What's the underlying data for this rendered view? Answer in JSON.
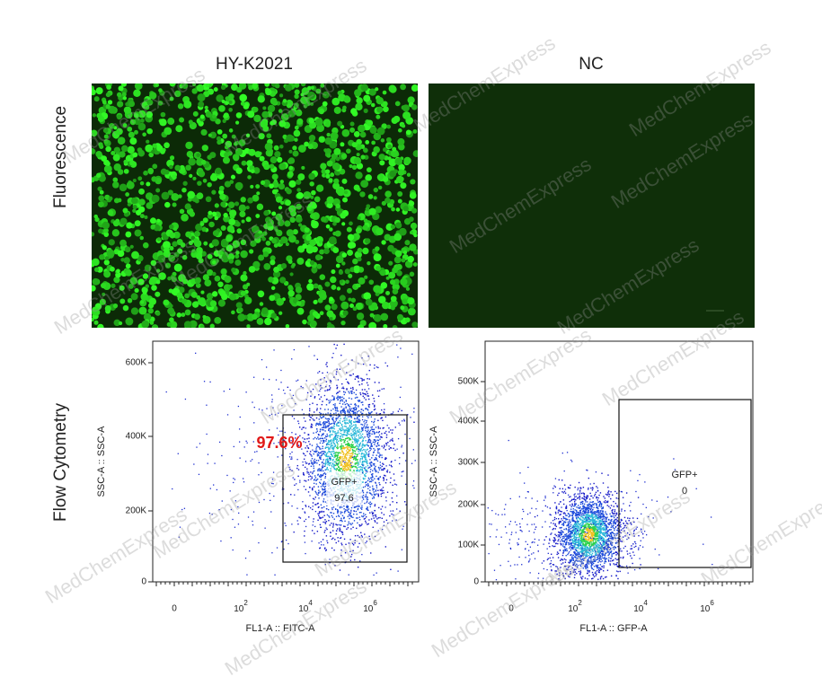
{
  "columns": [
    "HY-K2021",
    "NC"
  ],
  "rows": [
    "Fluorescence",
    "Flow Cytometry"
  ],
  "watermark": "MedChemExpress",
  "panels": [
    {
      "y_axis_title": "SSC-A :: SSC-A",
      "x_axis_title": "FL1-A :: FITC-A",
      "y_ticks": [
        "600K",
        "400K",
        "200K",
        "0"
      ],
      "x_ticks": [
        "0",
        {
          "base": "10",
          "exp": "2"
        },
        {
          "base": "10",
          "exp": "4"
        },
        {
          "base": "10",
          "exp": "6"
        }
      ],
      "gate_name": "GFP+",
      "gate_value": "97.6",
      "highlight": "97.6%"
    },
    {
      "y_axis_title": "SSC-A :: SSC-A",
      "x_axis_title": "FL1-A :: GFP-A",
      "y_ticks": [
        "500K",
        "400K",
        "300K",
        "200K",
        "100K",
        "0"
      ],
      "x_ticks": [
        "0",
        {
          "base": "10",
          "exp": "2"
        },
        {
          "base": "10",
          "exp": "4"
        },
        {
          "base": "10",
          "exp": "6"
        }
      ],
      "gate_name": "GFP+",
      "gate_value": "0"
    }
  ]
}
